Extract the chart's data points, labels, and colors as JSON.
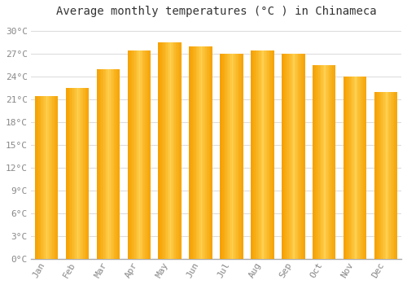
{
  "title": "Average monthly temperatures (°C ) in Chinameca",
  "months": [
    "Jan",
    "Feb",
    "Mar",
    "Apr",
    "May",
    "Jun",
    "Jul",
    "Aug",
    "Sep",
    "Oct",
    "Nov",
    "Dec"
  ],
  "values": [
    21.5,
    22.5,
    25.0,
    27.5,
    28.5,
    28.0,
    27.0,
    27.5,
    27.0,
    25.5,
    24.0,
    22.0
  ],
  "bar_color_center": "#FFD050",
  "bar_color_edge": "#F5A000",
  "ylim": [
    0,
    31
  ],
  "yticks": [
    0,
    3,
    6,
    9,
    12,
    15,
    18,
    21,
    24,
    27,
    30
  ],
  "ytick_labels": [
    "0°C",
    "3°C",
    "6°C",
    "9°C",
    "12°C",
    "15°C",
    "18°C",
    "21°C",
    "24°C",
    "27°C",
    "30°C"
  ],
  "bg_color": "#FFFFFF",
  "grid_color": "#DDDDDD",
  "title_fontsize": 10,
  "tick_fontsize": 8,
  "font_color": "#888888",
  "bar_width": 0.75
}
